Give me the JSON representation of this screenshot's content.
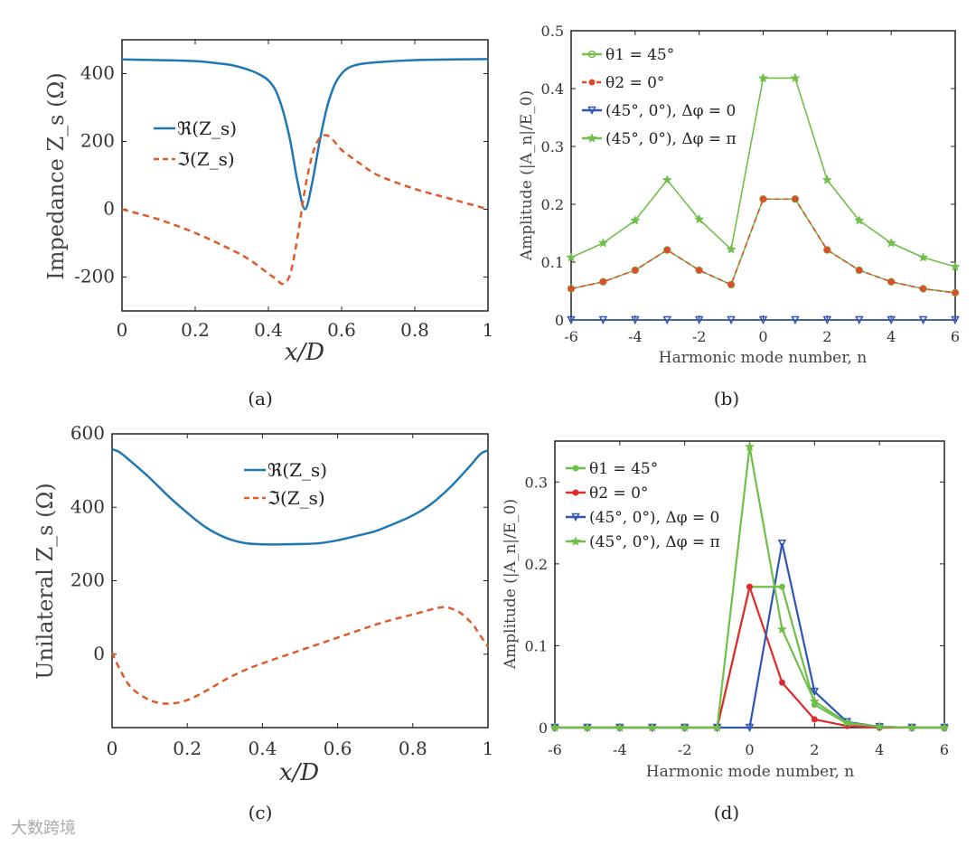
{
  "chart_data": [
    {
      "id": "a",
      "type": "line",
      "panel_label": "(a)",
      "xlabel": "x/D",
      "ylabel": "Impedance Z_s (Ω)",
      "xlim": [
        0,
        1
      ],
      "ylim": [
        -300,
        500
      ],
      "xticks": [
        0,
        0.2,
        0.4,
        0.6,
        0.8,
        1
      ],
      "xtick_labels": [
        "0",
        "0.2",
        "0.4",
        "0.6",
        "0.8",
        "1"
      ],
      "yticks": [
        -200,
        0,
        200,
        400
      ],
      "ytick_labels": [
        "-200",
        "0",
        "200",
        "400"
      ],
      "legend_position": "center-left",
      "series": [
        {
          "name": "ℜ(Z_s)",
          "color": "#1f77b4",
          "dash": "solid",
          "x": [
            0,
            0.1,
            0.2,
            0.25,
            0.3,
            0.35,
            0.38,
            0.4,
            0.42,
            0.44,
            0.46,
            0.48,
            0.5,
            0.52,
            0.54,
            0.56,
            0.58,
            0.6,
            0.62,
            0.65,
            0.7,
            0.8,
            0.9,
            1
          ],
          "y": [
            442,
            440,
            437,
            432,
            425,
            410,
            395,
            380,
            350,
            290,
            200,
            80,
            0,
            80,
            200,
            300,
            365,
            400,
            418,
            428,
            434,
            440,
            442,
            443
          ]
        },
        {
          "name": "ℑ(Z_s)",
          "color": "#e05a2b",
          "dash": "dashed",
          "x": [
            0,
            0.1,
            0.2,
            0.3,
            0.35,
            0.4,
            0.42,
            0.44,
            0.46,
            0.48,
            0.5,
            0.52,
            0.54,
            0.56,
            0.58,
            0.6,
            0.65,
            0.7,
            0.8,
            0.9,
            1
          ],
          "y": [
            0,
            -30,
            -70,
            -120,
            -150,
            -190,
            -205,
            -220,
            -190,
            -80,
            60,
            160,
            210,
            218,
            200,
            175,
            135,
            100,
            60,
            30,
            0
          ]
        }
      ]
    },
    {
      "id": "b",
      "type": "line",
      "panel_label": "(b)",
      "xlabel": "Harmonic mode number, n",
      "ylabel": "Amplitude (|A_n|/E_0)",
      "xlim": [
        -6,
        6
      ],
      "ylim": [
        0,
        0.5
      ],
      "xticks": [
        -6,
        -4,
        -2,
        0,
        2,
        4,
        6
      ],
      "xtick_labels": [
        "-6",
        "-4",
        "-2",
        "0",
        "2",
        "4",
        "6"
      ],
      "yticks": [
        0,
        0.1,
        0.2,
        0.3,
        0.4,
        0.5
      ],
      "ytick_labels": [
        "0",
        "0.1",
        "0.2",
        "0.3",
        "0.4",
        "0.5"
      ],
      "legend_position": "top-left",
      "x": [
        -6,
        -5,
        -4,
        -3,
        -2,
        -1,
        0,
        1,
        2,
        3,
        4,
        5,
        6
      ],
      "series": [
        {
          "name": "θ1 = 45°",
          "color": "#6fbf4a",
          "marker": "circle",
          "values": [
            0.054,
            0.066,
            0.086,
            0.121,
            0.086,
            0.061,
            0.209,
            0.209,
            0.121,
            0.086,
            0.066,
            0.054,
            0.047
          ]
        },
        {
          "name": "θ2 = 0°",
          "color": "#e04a2b",
          "marker": "dot",
          "dash": "dashed",
          "values": [
            0.054,
            0.066,
            0.086,
            0.121,
            0.086,
            0.061,
            0.209,
            0.209,
            0.121,
            0.086,
            0.066,
            0.054,
            0.047
          ]
        },
        {
          "name": "(45°, 0°), Δφ = 0",
          "color": "#2f55b5",
          "marker": "triangle-down",
          "values": [
            0,
            0,
            0,
            0,
            0,
            0,
            0,
            0,
            0,
            0,
            0,
            0,
            0
          ]
        },
        {
          "name": "(45°, 0°), Δφ = π",
          "color": "#6fbf4a",
          "marker": "star",
          "values": [
            0.108,
            0.133,
            0.172,
            0.242,
            0.174,
            0.122,
            0.418,
            0.418,
            0.242,
            0.172,
            0.133,
            0.108,
            0.092
          ]
        }
      ]
    },
    {
      "id": "c",
      "type": "line",
      "panel_label": "(c)",
      "xlabel": "x/D",
      "ylabel": "Unilateral Z_s (Ω)",
      "xlim": [
        0,
        1
      ],
      "ylim": [
        -200,
        600
      ],
      "xticks": [
        0,
        0.2,
        0.4,
        0.6,
        0.8,
        1
      ],
      "xtick_labels": [
        "0",
        "0.2",
        "0.4",
        "0.6",
        "0.8",
        "1"
      ],
      "yticks": [
        0,
        200,
        400,
        600
      ],
      "ytick_labels": [
        "0",
        "200",
        "400",
        "600"
      ],
      "legend_position": "top-center",
      "series": [
        {
          "name": "ℜ(Z_s)",
          "color": "#1f77b4",
          "dash": "solid",
          "x": [
            0,
            0.02,
            0.05,
            0.1,
            0.15,
            0.2,
            0.25,
            0.3,
            0.35,
            0.4,
            0.45,
            0.5,
            0.55,
            0.6,
            0.65,
            0.7,
            0.75,
            0.8,
            0.85,
            0.9,
            0.95,
            0.98,
            1
          ],
          "y": [
            558,
            550,
            525,
            480,
            430,
            385,
            345,
            318,
            303,
            299,
            299,
            300,
            302,
            310,
            322,
            335,
            355,
            378,
            410,
            455,
            510,
            545,
            555
          ]
        },
        {
          "name": "ℑ(Z_s)",
          "color": "#e05a2b",
          "dash": "dashed",
          "x": [
            0,
            0.02,
            0.05,
            0.1,
            0.15,
            0.2,
            0.25,
            0.3,
            0.35,
            0.4,
            0.5,
            0.6,
            0.7,
            0.75,
            0.8,
            0.85,
            0.88,
            0.9,
            0.93,
            0.96,
            0.98,
            1
          ],
          "y": [
            5,
            -40,
            -90,
            -125,
            -135,
            -125,
            -100,
            -70,
            -45,
            -25,
            10,
            45,
            80,
            95,
            108,
            122,
            128,
            125,
            110,
            80,
            50,
            20
          ]
        }
      ]
    },
    {
      "id": "d",
      "type": "line",
      "panel_label": "(d)",
      "xlabel": "Harmonic mode number, n",
      "ylabel": "Amplitude (|A_n|/E_0)",
      "xlim": [
        -6,
        6
      ],
      "ylim": [
        0,
        0.35
      ],
      "xticks": [
        -6,
        -4,
        -2,
        0,
        2,
        4,
        6
      ],
      "xtick_labels": [
        "-6",
        "-4",
        "-2",
        "0",
        "2",
        "4",
        "6"
      ],
      "yticks": [
        0,
        0.1,
        0.2,
        0.3
      ],
      "ytick_labels": [
        "0",
        "0.1",
        "0.2",
        "0.3"
      ],
      "legend_position": "top-left",
      "x": [
        -6,
        -5,
        -4,
        -3,
        -2,
        -1,
        0,
        1,
        2,
        3,
        4,
        5,
        6
      ],
      "series": [
        {
          "name": "θ1 = 45°",
          "color": "#6fbf4a",
          "marker": "dot",
          "values": [
            0,
            0,
            0,
            0,
            0,
            0,
            0.172,
            0.172,
            0.028,
            0.005,
            0.001,
            0,
            0
          ]
        },
        {
          "name": "θ2 = 0°",
          "color": "#e02a2b",
          "marker": "dot",
          "values": [
            0,
            0,
            0,
            0,
            0,
            0,
            0.172,
            0.055,
            0.01,
            0.002,
            0,
            0,
            0
          ]
        },
        {
          "name": "(45°, 0°), Δφ = 0",
          "color": "#2f55b5",
          "marker": "triangle-down",
          "values": [
            0,
            0,
            0,
            0,
            0,
            0,
            0,
            0.225,
            0.044,
            0.007,
            0.001,
            0,
            0
          ]
        },
        {
          "name": "(45°, 0°), Δφ = π",
          "color": "#6fbf4a",
          "marker": "star",
          "values": [
            0,
            0,
            0,
            0,
            0,
            0,
            0.343,
            0.12,
            0.032,
            0.006,
            0.001,
            0,
            0
          ]
        }
      ]
    }
  ],
  "watermark": "大数跨境"
}
